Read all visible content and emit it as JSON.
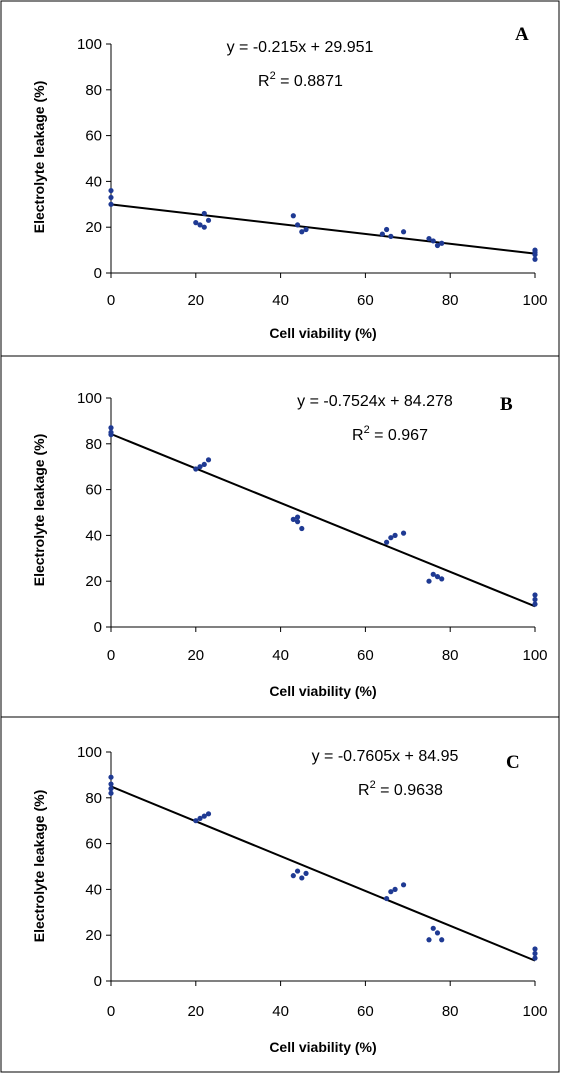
{
  "chart_data": [
    {
      "type": "scatter",
      "panel_label": "A",
      "equation": "y = -0.215x + 29.951",
      "r2_prefix": "R",
      "r2_exp": "2",
      "r2_value": " = 0.8871",
      "xlabel": "Cell viability (%)",
      "ylabel": "Electrolyte leakage (%)",
      "xlim": [
        0,
        100
      ],
      "ylim": [
        0,
        100
      ],
      "xticks": [
        "0",
        "20",
        "40",
        "60",
        "80",
        "100"
      ],
      "yticks": [
        "0",
        "20",
        "40",
        "60",
        "80",
        "100"
      ],
      "grid": false,
      "legend": false,
      "trendline": {
        "slope": -0.215,
        "intercept": 29.951
      },
      "points": [
        {
          "x": 0,
          "y": 36
        },
        {
          "x": 0,
          "y": 33
        },
        {
          "x": 0,
          "y": 30
        },
        {
          "x": 20,
          "y": 22
        },
        {
          "x": 21,
          "y": 21
        },
        {
          "x": 22,
          "y": 26
        },
        {
          "x": 23,
          "y": 23
        },
        {
          "x": 22,
          "y": 20
        },
        {
          "x": 43,
          "y": 25
        },
        {
          "x": 44,
          "y": 21
        },
        {
          "x": 45,
          "y": 18
        },
        {
          "x": 46,
          "y": 19
        },
        {
          "x": 64,
          "y": 17
        },
        {
          "x": 65,
          "y": 19
        },
        {
          "x": 66,
          "y": 16
        },
        {
          "x": 69,
          "y": 18
        },
        {
          "x": 75,
          "y": 15
        },
        {
          "x": 76,
          "y": 14
        },
        {
          "x": 77,
          "y": 12
        },
        {
          "x": 78,
          "y": 13
        },
        {
          "x": 100,
          "y": 10
        },
        {
          "x": 100,
          "y": 8
        },
        {
          "x": 100,
          "y": 6
        },
        {
          "x": 100,
          "y": 9
        }
      ]
    },
    {
      "type": "scatter",
      "panel_label": "B",
      "equation": "y = -0.7524x + 84.278",
      "r2_prefix": "R",
      "r2_exp": "2",
      "r2_value": " = 0.967",
      "xlabel": "Cell viability (%)",
      "ylabel": "Electrolyte leakage (%)",
      "xlim": [
        0,
        100
      ],
      "ylim": [
        0,
        100
      ],
      "xticks": [
        "0",
        "20",
        "40",
        "60",
        "80",
        "100"
      ],
      "yticks": [
        "0",
        "20",
        "40",
        "60",
        "80",
        "100"
      ],
      "grid": false,
      "legend": false,
      "trendline": {
        "slope": -0.7524,
        "intercept": 84.278
      },
      "points": [
        {
          "x": 0,
          "y": 87
        },
        {
          "x": 0,
          "y": 85
        },
        {
          "x": 0,
          "y": 84
        },
        {
          "x": 20,
          "y": 69
        },
        {
          "x": 21,
          "y": 70
        },
        {
          "x": 22,
          "y": 71
        },
        {
          "x": 23,
          "y": 73
        },
        {
          "x": 43,
          "y": 47
        },
        {
          "x": 44,
          "y": 46
        },
        {
          "x": 44,
          "y": 48
        },
        {
          "x": 45,
          "y": 43
        },
        {
          "x": 65,
          "y": 37
        },
        {
          "x": 66,
          "y": 39
        },
        {
          "x": 67,
          "y": 40
        },
        {
          "x": 69,
          "y": 41
        },
        {
          "x": 75,
          "y": 20
        },
        {
          "x": 76,
          "y": 23
        },
        {
          "x": 77,
          "y": 22
        },
        {
          "x": 78,
          "y": 21
        },
        {
          "x": 100,
          "y": 14
        },
        {
          "x": 100,
          "y": 12
        },
        {
          "x": 100,
          "y": 10
        }
      ]
    },
    {
      "type": "scatter",
      "panel_label": "C",
      "equation": "y = -0.7605x + 84.95",
      "r2_prefix": "R",
      "r2_exp": "2",
      "r2_value": " = 0.9638",
      "xlabel": "Cell viability (%)",
      "ylabel": "Electrolyte leakage (%)",
      "xlim": [
        0,
        100
      ],
      "ylim": [
        0,
        100
      ],
      "xticks": [
        "0",
        "20",
        "40",
        "60",
        "80",
        "100"
      ],
      "yticks": [
        "0",
        "20",
        "40",
        "60",
        "80",
        "100"
      ],
      "grid": false,
      "legend": false,
      "trendline": {
        "slope": -0.7605,
        "intercept": 84.95
      },
      "points": [
        {
          "x": 0,
          "y": 89
        },
        {
          "x": 0,
          "y": 86
        },
        {
          "x": 0,
          "y": 84
        },
        {
          "x": 0,
          "y": 82
        },
        {
          "x": 20,
          "y": 70
        },
        {
          "x": 21,
          "y": 71
        },
        {
          "x": 22,
          "y": 72
        },
        {
          "x": 23,
          "y": 73
        },
        {
          "x": 43,
          "y": 46
        },
        {
          "x": 44,
          "y": 48
        },
        {
          "x": 45,
          "y": 45
        },
        {
          "x": 46,
          "y": 47
        },
        {
          "x": 65,
          "y": 36
        },
        {
          "x": 66,
          "y": 39
        },
        {
          "x": 67,
          "y": 40
        },
        {
          "x": 69,
          "y": 42
        },
        {
          "x": 75,
          "y": 18
        },
        {
          "x": 76,
          "y": 23
        },
        {
          "x": 77,
          "y": 21
        },
        {
          "x": 78,
          "y": 18
        },
        {
          "x": 100,
          "y": 14
        },
        {
          "x": 100,
          "y": 12
        },
        {
          "x": 100,
          "y": 10
        }
      ]
    }
  ]
}
